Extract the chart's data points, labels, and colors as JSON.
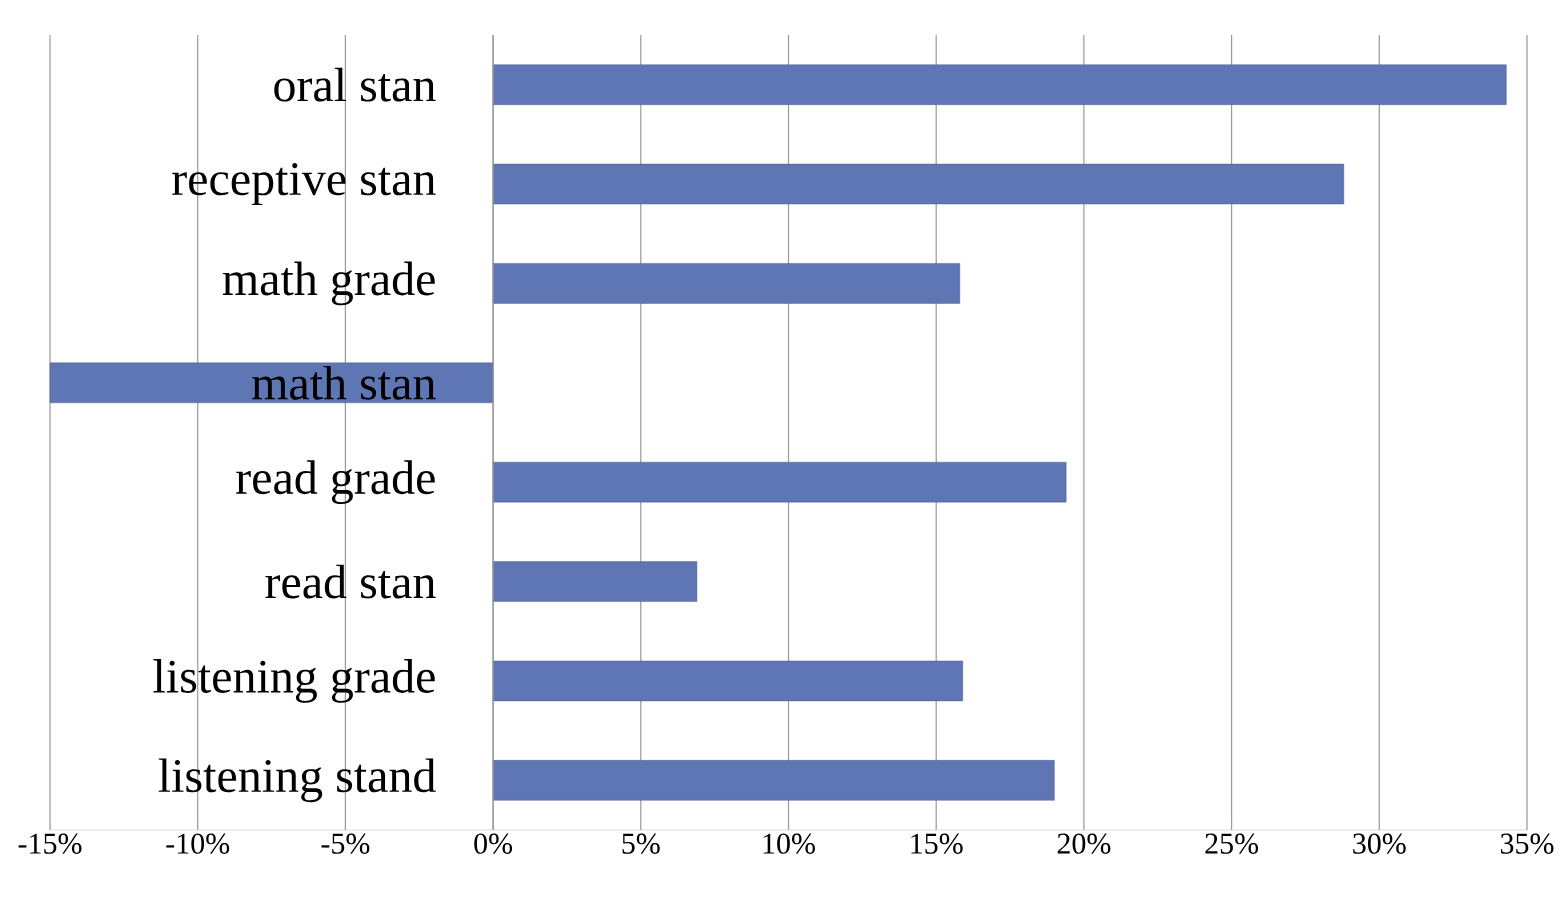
{
  "chart_data": {
    "type": "bar",
    "orientation": "horizontal",
    "categories": [
      "oral stan",
      "receptive stan",
      "math grade",
      "math stan",
      "read grade",
      "read stan",
      "listening grade",
      "listening stand"
    ],
    "values": [
      34.3,
      28.8,
      15.8,
      -15.0,
      19.4,
      6.9,
      15.9,
      19.0
    ],
    "color": "#5f76b4",
    "xlim": [
      -15,
      35
    ],
    "xticks": [
      {
        "value": -15,
        "label": "-15%"
      },
      {
        "value": -10,
        "label": "-10%"
      },
      {
        "value": -5,
        "label": "-5%"
      },
      {
        "value": 0,
        "label": "0%"
      },
      {
        "value": 5,
        "label": "5%"
      },
      {
        "value": 10,
        "label": "10%"
      },
      {
        "value": 15,
        "label": "15%"
      },
      {
        "value": 20,
        "label": "20%"
      },
      {
        "value": 25,
        "label": "25%"
      },
      {
        "value": 30,
        "label": "30%"
      },
      {
        "value": 35,
        "label": "35%"
      }
    ],
    "grid": "x"
  }
}
